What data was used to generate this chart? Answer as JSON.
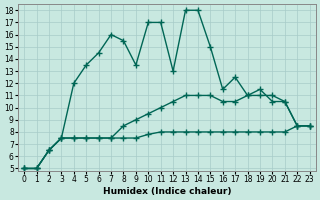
{
  "xlabel": "Humidex (Indice chaleur)",
  "background_color": "#c8e8e0",
  "grid_color": "#a8ccc8",
  "line_color": "#006655",
  "x_main": [
    0,
    1,
    2,
    3,
    4,
    5,
    6,
    7,
    8,
    9,
    10,
    11,
    12,
    13,
    14,
    15,
    16,
    17,
    18,
    19,
    20,
    21,
    22,
    23
  ],
  "y_main": [
    5,
    5,
    6.5,
    7.5,
    12,
    13.5,
    14.5,
    16,
    15.5,
    13.5,
    17,
    17,
    13,
    18,
    18,
    15,
    11.5,
    12.5,
    11,
    11.5,
    10.5,
    10.5,
    8.5,
    8.5
  ],
  "x_line2": [
    0,
    1,
    2,
    3,
    4,
    5,
    6,
    7,
    8,
    9,
    10,
    11,
    12,
    13,
    14,
    15,
    16,
    17,
    18,
    19,
    20,
    21,
    22,
    23
  ],
  "y_line2": [
    5,
    5,
    6.5,
    7.5,
    7.5,
    7.5,
    7.5,
    7.5,
    8.5,
    9,
    9.5,
    10,
    10.5,
    11,
    11,
    11,
    10.5,
    10.5,
    11,
    11,
    11,
    10.5,
    8.5,
    8.5
  ],
  "x_line3": [
    0,
    1,
    2,
    3,
    4,
    5,
    6,
    7,
    8,
    9,
    10,
    11,
    12,
    13,
    14,
    15,
    16,
    17,
    18,
    19,
    20,
    21,
    22,
    23
  ],
  "y_line3": [
    5,
    5,
    6.5,
    7.5,
    7.5,
    7.5,
    7.5,
    7.5,
    7.5,
    7.5,
    7.8,
    8,
    8,
    8,
    8,
    8,
    8,
    8,
    8,
    8,
    8,
    8,
    8.5,
    8.5
  ],
  "ylim": [
    4.8,
    18.5
  ],
  "xlim": [
    -0.5,
    23.5
  ],
  "yticks": [
    5,
    6,
    7,
    8,
    9,
    10,
    11,
    12,
    13,
    14,
    15,
    16,
    17,
    18
  ],
  "xticks": [
    0,
    1,
    2,
    3,
    4,
    5,
    6,
    7,
    8,
    9,
    10,
    11,
    12,
    13,
    14,
    15,
    16,
    17,
    18,
    19,
    20,
    21,
    22,
    23
  ],
  "marker": "+",
  "markersize": 4,
  "markeredgewidth": 1.0,
  "linewidth": 1.0
}
